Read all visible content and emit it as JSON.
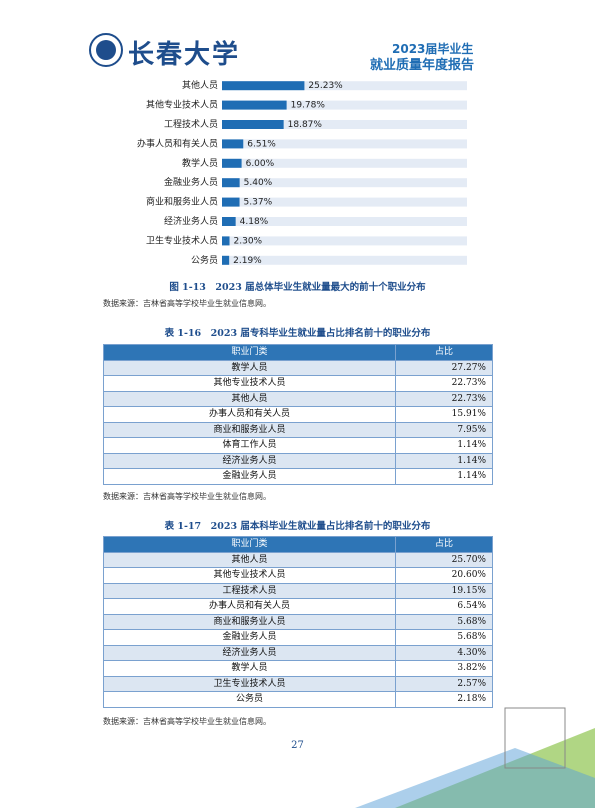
{
  "header": {
    "logo_text": "长春大学",
    "report_title_line1": "2023届毕业生",
    "report_title_line2": "就业质量年度报告"
  },
  "chart_data": {
    "type": "bar",
    "orientation": "horizontal",
    "categories": [
      "其他人员",
      "其他专业技术人员",
      "工程技术人员",
      "办事人员和有关人员",
      "教学人员",
      "金融业务人员",
      "商业和服务业人员",
      "经济业务人员",
      "卫生专业技术人员",
      "公务员"
    ],
    "values": [
      25.23,
      19.78,
      18.87,
      6.51,
      6.0,
      5.4,
      5.37,
      4.18,
      2.3,
      2.19
    ],
    "value_labels": [
      "25.23%",
      "19.78%",
      "18.87%",
      "6.51%",
      "6.00%",
      "5.40%",
      "5.37%",
      "4.18%",
      "2.30%",
      "2.19%"
    ],
    "color": "#1f6db4",
    "track_color": "#e4ebf5",
    "xlim": [
      0,
      75
    ],
    "caption": "图 1-13　2023 届总体毕业生就业量最大的前十个职业分布",
    "source": "数据来源：吉林省高等学校毕业生就业信息网。"
  },
  "table1": {
    "title": "表 1-16　2023 届专科毕业生就业量占比排名前十的职业分布",
    "columns": [
      "职业门类",
      "占比"
    ],
    "rows": [
      [
        "教学人员",
        "27.27%"
      ],
      [
        "其他专业技术人员",
        "22.73%"
      ],
      [
        "其他人员",
        "22.73%"
      ],
      [
        "办事人员和有关人员",
        "15.91%"
      ],
      [
        "商业和服务业人员",
        "7.95%"
      ],
      [
        "体育工作人员",
        "1.14%"
      ],
      [
        "经济业务人员",
        "1.14%"
      ],
      [
        "金融业务人员",
        "1.14%"
      ]
    ],
    "source": "数据来源：吉林省高等学校毕业生就业信息网。"
  },
  "table2": {
    "title": "表 1-17　2023 届本科毕业生就业量占比排名前十的职业分布",
    "columns": [
      "职业门类",
      "占比"
    ],
    "rows": [
      [
        "其他人员",
        "25.70%"
      ],
      [
        "其他专业技术人员",
        "20.60%"
      ],
      [
        "工程技术人员",
        "19.15%"
      ],
      [
        "办事人员和有关人员",
        "6.54%"
      ],
      [
        "商业和服务业人员",
        "5.68%"
      ],
      [
        "金融业务人员",
        "5.68%"
      ],
      [
        "经济业务人员",
        "4.30%"
      ],
      [
        "教学人员",
        "3.82%"
      ],
      [
        "卫生专业技术人员",
        "2.57%"
      ],
      [
        "公务员",
        "2.18%"
      ]
    ],
    "source": "数据来源：吉林省高等学校毕业生就业信息网。"
  },
  "page_number": "27"
}
